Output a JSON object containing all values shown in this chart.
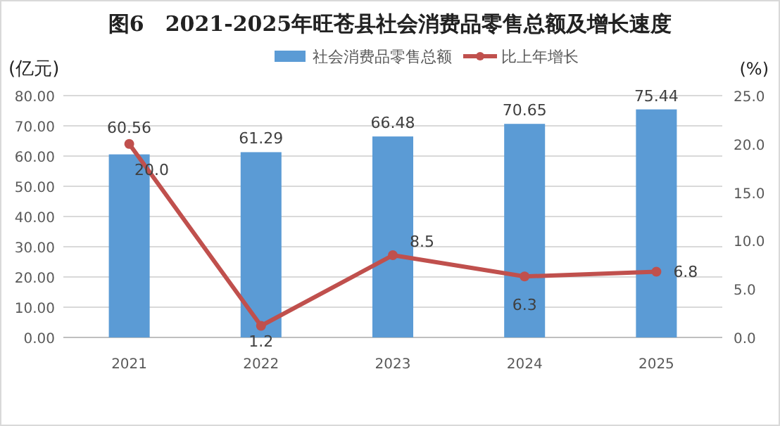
{
  "chart_data": {
    "type": "bar",
    "title": "图6　2021-2025年旺苍县社会消费品零售总额及增长速度",
    "ylabel": "(亿元)",
    "y2label": "(%)",
    "categories": [
      "2021",
      "2022",
      "2023",
      "2024",
      "2025"
    ],
    "series": [
      {
        "name": "社会消费品零售总额",
        "color": "#5b9bd5",
        "values": [
          60.56,
          61.29,
          66.48,
          70.65,
          75.44
        ],
        "value_labels": [
          "60.56",
          "61.29",
          "66.48",
          "70.65",
          "75.44"
        ]
      },
      {
        "name": "比上年增长",
        "type": "line",
        "axis": "y2",
        "color": "#c0504d",
        "values": [
          20.0,
          1.2,
          8.5,
          6.3,
          6.8
        ],
        "value_labels": [
          "20.0",
          "1.2",
          "8.5",
          "6.3",
          "6.8"
        ]
      }
    ],
    "ylim": [
      0,
      80
    ],
    "yticks": [
      {
        "value": 0,
        "label": "0.00"
      },
      {
        "value": 10,
        "label": "10.00"
      },
      {
        "value": 20,
        "label": "20.00"
      },
      {
        "value": 30,
        "label": "30.00"
      },
      {
        "value": 40,
        "label": "40.00"
      },
      {
        "value": 50,
        "label": "50.00"
      },
      {
        "value": 60,
        "label": "60.00"
      },
      {
        "value": 70,
        "label": "70.00"
      },
      {
        "value": 80,
        "label": "80.00"
      }
    ],
    "y2lim": [
      0,
      25
    ],
    "y2ticks": [
      {
        "value": 0,
        "label": "0.0"
      },
      {
        "value": 5,
        "label": "5.0"
      },
      {
        "value": 10,
        "label": "10.0"
      },
      {
        "value": 15,
        "label": "15.0"
      },
      {
        "value": 20,
        "label": "20.0"
      },
      {
        "value": 25,
        "label": "25.0"
      }
    ],
    "grid": "y",
    "legend": "top",
    "marker": "circle",
    "line_style": "solid"
  }
}
